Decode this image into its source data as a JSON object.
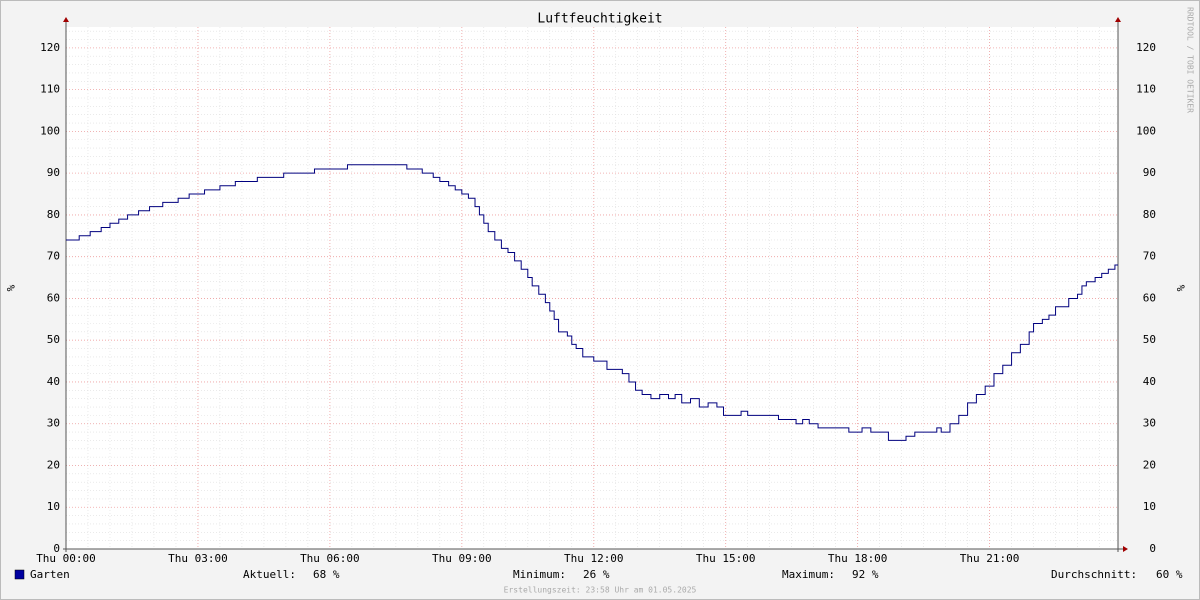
{
  "chart_data": {
    "type": "line",
    "title": "Luftfeuchtigkeit",
    "y_label": "%",
    "watermark": "RRDTOOL / TOBI OETIKER",
    "footer": "Erstellungszeit: 23:58 Uhr am 01.05.2025",
    "x": [
      0,
      0.3,
      0.55,
      0.8,
      1.0,
      1.2,
      1.4,
      1.65,
      1.9,
      2.2,
      2.55,
      2.8,
      3.15,
      3.5,
      3.85,
      4.35,
      4.95,
      5.65,
      6.4,
      7.75,
      8.1,
      8.35,
      8.5,
      8.7,
      8.85,
      9.0,
      9.15,
      9.3,
      9.4,
      9.5,
      9.6,
      9.75,
      9.9,
      10.05,
      10.2,
      10.35,
      10.5,
      10.6,
      10.75,
      10.9,
      11.0,
      11.1,
      11.2,
      11.4,
      11.5,
      11.6,
      11.75,
      12.0,
      12.3,
      12.65,
      12.8,
      12.95,
      13.1,
      13.3,
      13.5,
      13.7,
      13.85,
      14.0,
      14.2,
      14.4,
      14.6,
      14.8,
      14.95,
      15.35,
      15.5,
      16.2,
      16.6,
      16.75,
      16.9,
      17.1,
      17.8,
      18.1,
      18.3,
      18.7,
      19.1,
      19.3,
      19.8,
      19.9,
      20.1,
      20.3,
      20.5,
      20.7,
      20.9,
      21.1,
      21.3,
      21.5,
      21.7,
      21.9,
      22.0,
      22.2,
      22.35,
      22.5,
      22.8,
      23.0,
      23.1,
      23.2,
      23.4,
      23.55,
      23.7,
      23.85
    ],
    "series": [
      {
        "name": "Garten",
        "color": "#00007f",
        "legend_color": "#0000a0",
        "values": [
          74,
          75,
          76,
          77,
          78,
          79,
          80,
          81,
          82,
          83,
          84,
          85,
          86,
          87,
          88,
          89,
          90,
          91,
          92,
          91,
          90,
          89,
          88,
          87,
          86,
          85,
          84,
          82,
          80,
          78,
          76,
          74,
          72,
          71,
          69,
          67,
          65,
          63,
          61,
          59,
          57,
          55,
          52,
          51,
          49,
          48,
          46,
          45,
          43,
          42,
          40,
          38,
          37,
          36,
          37,
          36,
          37,
          35,
          36,
          34,
          35,
          34,
          32,
          33,
          32,
          31,
          30,
          31,
          30,
          29,
          28,
          29,
          28,
          26,
          27,
          28,
          29,
          28,
          30,
          32,
          35,
          37,
          39,
          42,
          44,
          47,
          49,
          52,
          54,
          55,
          56,
          58,
          60,
          61,
          63,
          64,
          65,
          66,
          67,
          68
        ]
      }
    ],
    "stats": [
      {
        "label": "Aktuell:",
        "value": "68 %"
      },
      {
        "label": "Minimum:",
        "value": "26 %"
      },
      {
        "label": "Maximum:",
        "value": "92 %"
      },
      {
        "label": "Durchschnitt:",
        "value": "60 %"
      }
    ],
    "xlim": [
      0,
      23.92
    ],
    "ylim": [
      0,
      125
    ],
    "xticks": [
      {
        "value": 0,
        "label": "Thu 00:00"
      },
      {
        "value": 3,
        "label": "Thu 03:00"
      },
      {
        "value": 6,
        "label": "Thu 06:00"
      },
      {
        "value": 9,
        "label": "Thu 09:00"
      },
      {
        "value": 12,
        "label": "Thu 12:00"
      },
      {
        "value": 15,
        "label": "Thu 15:00"
      },
      {
        "value": 18,
        "label": "Thu 18:00"
      },
      {
        "value": 21,
        "label": "Thu 21:00"
      }
    ],
    "yticks": [
      0,
      10,
      20,
      30,
      40,
      50,
      60,
      70,
      80,
      90,
      100,
      110,
      120
    ],
    "grid": true
  }
}
